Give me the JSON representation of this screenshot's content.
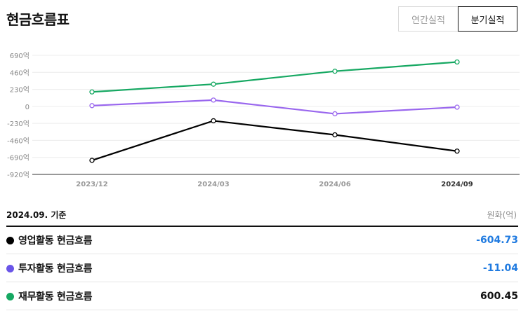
{
  "header": {
    "title": "현금흐름표",
    "annual_label": "연간실적",
    "quarter_label": "분기실적"
  },
  "chart_data": {
    "type": "line",
    "x": [
      "2023/12",
      "2024/03",
      "2024/06",
      "2024/09"
    ],
    "y_ticks": [
      {
        "value": 690,
        "label": "690억"
      },
      {
        "value": 460,
        "label": "460억"
      },
      {
        "value": 230,
        "label": "230억"
      },
      {
        "value": 0,
        "label": "0"
      },
      {
        "value": -230,
        "label": "-230억"
      },
      {
        "value": -460,
        "label": "-460억"
      },
      {
        "value": -690,
        "label": "-690억"
      },
      {
        "value": -920,
        "label": "-920억"
      }
    ],
    "ylim": [
      -920,
      690
    ],
    "grid": true,
    "series": [
      {
        "name": "영업활동 현금흐름",
        "color": "#000000",
        "values": [
          -730,
          -195,
          -385,
          -605
        ]
      },
      {
        "name": "투자활동 현금흐름",
        "color": "#9966ee",
        "values": [
          10,
          85,
          -100,
          -11
        ]
      },
      {
        "name": "재무활동 현금흐름",
        "color": "#16a862",
        "values": [
          195,
          300,
          475,
          600
        ]
      }
    ]
  },
  "summary": {
    "basis": "2024.09. 기준",
    "unit": "원화(억)",
    "rows": [
      {
        "label": "영업활동 현금흐름",
        "value": "-604.73",
        "dot_color": "#000000",
        "value_color": "#1f7ae0"
      },
      {
        "label": "투자활동 현금흐름",
        "value": "-11.04",
        "dot_color": "#6a55e8",
        "value_color": "#1f7ae0"
      },
      {
        "label": "재무활동 현금흐름",
        "value": "600.45",
        "dot_color": "#16a862",
        "value_color": "#111111"
      }
    ]
  }
}
